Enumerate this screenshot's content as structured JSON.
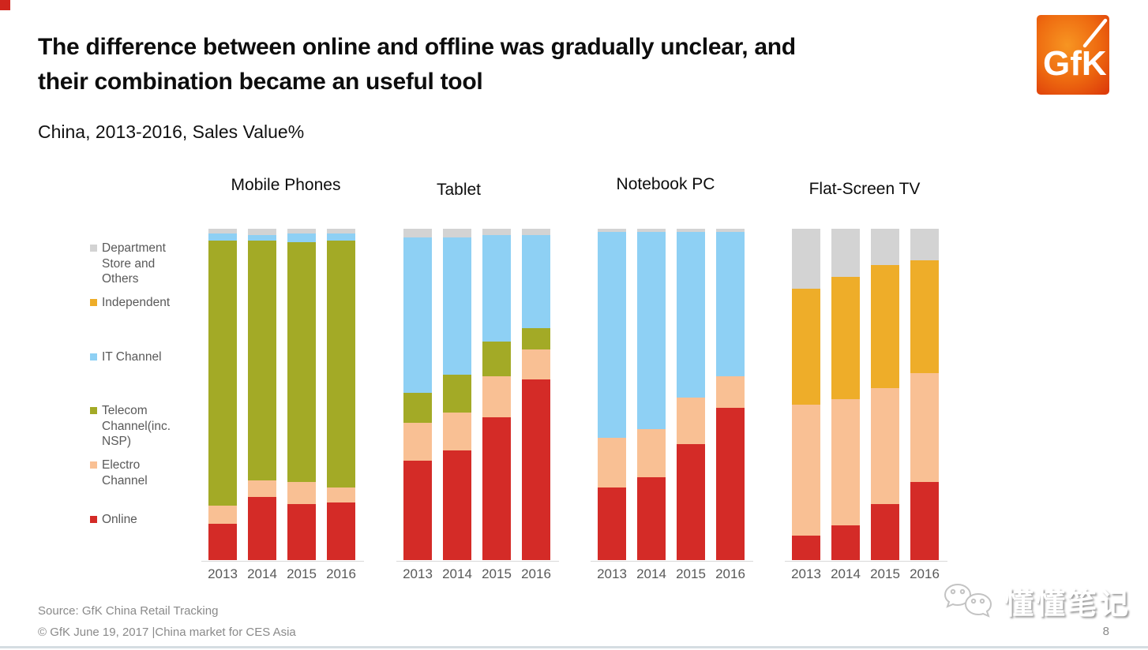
{
  "slide": {
    "title_line1": "The difference between online and offline was gradually unclear, and",
    "title_line2": "their combination became an useful tool",
    "subtitle": "China, 2013-2016, Sales Value%",
    "logo_text": "GfK",
    "footer_source": "Source: GfK China Retail Tracking",
    "footer_copyright": "© GfK June 19, 2017 |China market for CES Asia",
    "page_number": "8",
    "watermark_text": "懂懂笔记"
  },
  "colors": {
    "online": "#d42b27",
    "electro_channel": "#f9c094",
    "telecom_channel": "#a3aa26",
    "it_channel": "#8ed0f4",
    "independent": "#eead29",
    "department_store": "#d3d3d3",
    "logo_orange": "#ec5c0f",
    "axis_gray": "#d9d9d9",
    "text_gray": "#595959"
  },
  "legend": {
    "items": [
      {
        "id": "department-store",
        "label": "Department Store and Others",
        "color": "#d3d3d3"
      },
      {
        "id": "independent",
        "label": "Independent",
        "color": "#eead29"
      },
      {
        "id": "it-channel",
        "label": "IT Channel",
        "color": "#8ed0f4"
      },
      {
        "id": "telecom-channel",
        "label": "Telecom Channel(inc. NSP)",
        "color": "#a3aa26"
      },
      {
        "id": "electro-channel",
        "label": "Electro Channel",
        "color": "#f9c094"
      },
      {
        "id": "online",
        "label": "Online",
        "color": "#d42b27"
      }
    ]
  },
  "chart_data": [
    {
      "type": "bar",
      "stacked": true,
      "title": "Mobile Phones",
      "categories": [
        "2013",
        "2014",
        "2015",
        "2016"
      ],
      "ylabel": "Sales Value %",
      "ylim": [
        0,
        100
      ],
      "series": [
        {
          "name": "Online",
          "color": "#d42b27",
          "values": [
            11,
            19,
            17,
            17.5
          ]
        },
        {
          "name": "Electro Channel",
          "color": "#f9c094",
          "values": [
            5.5,
            5,
            6.5,
            4.5
          ]
        },
        {
          "name": "Telecom Channel(inc. NSP)",
          "color": "#a3aa26",
          "values": [
            80,
            72.5,
            72.5,
            74.5
          ]
        },
        {
          "name": "IT Channel",
          "color": "#8ed0f4",
          "values": [
            2,
            1.5,
            2.5,
            2
          ]
        },
        {
          "name": "Independent",
          "color": "#eead29",
          "values": [
            0,
            0,
            0,
            0
          ]
        },
        {
          "name": "Department Store and Others",
          "color": "#d3d3d3",
          "values": [
            1.5,
            2,
            1.5,
            1.5
          ]
        }
      ]
    },
    {
      "type": "bar",
      "stacked": true,
      "title": "Tablet",
      "categories": [
        "2013",
        "2014",
        "2015",
        "2016"
      ],
      "ylabel": "Sales Value %",
      "ylim": [
        0,
        100
      ],
      "series": [
        {
          "name": "Online",
          "color": "#d42b27",
          "values": [
            30,
            33,
            43,
            54.5
          ]
        },
        {
          "name": "Electro Channel",
          "color": "#f9c094",
          "values": [
            11.5,
            11.5,
            12.5,
            9
          ]
        },
        {
          "name": "Telecom Channel(inc. NSP)",
          "color": "#a3aa26",
          "values": [
            9,
            11.5,
            10.5,
            6.5
          ]
        },
        {
          "name": "IT Channel",
          "color": "#8ed0f4",
          "values": [
            47,
            41.5,
            32,
            28
          ]
        },
        {
          "name": "Independent",
          "color": "#eead29",
          "values": [
            0,
            0,
            0,
            0
          ]
        },
        {
          "name": "Department Store and Others",
          "color": "#d3d3d3",
          "values": [
            2.5,
            2.5,
            2,
            2
          ]
        }
      ]
    },
    {
      "type": "bar",
      "stacked": true,
      "title": "Notebook PC",
      "categories": [
        "2013",
        "2014",
        "2015",
        "2016"
      ],
      "ylabel": "Sales Value %",
      "ylim": [
        0,
        100
      ],
      "series": [
        {
          "name": "Online",
          "color": "#d42b27",
          "values": [
            22,
            25,
            35,
            46
          ]
        },
        {
          "name": "Electro Channel",
          "color": "#f9c094",
          "values": [
            15,
            14.5,
            14,
            9.5
          ]
        },
        {
          "name": "Telecom Channel(inc. NSP)",
          "color": "#a3aa26",
          "values": [
            0,
            0,
            0,
            0
          ]
        },
        {
          "name": "IT Channel",
          "color": "#8ed0f4",
          "values": [
            62,
            59.5,
            50,
            43.5
          ]
        },
        {
          "name": "Independent",
          "color": "#eead29",
          "values": [
            0,
            0,
            0,
            0
          ]
        },
        {
          "name": "Department Store and Others",
          "color": "#d3d3d3",
          "values": [
            1,
            1,
            1,
            1
          ]
        }
      ]
    },
    {
      "type": "bar",
      "stacked": true,
      "title": "Flat-Screen TV",
      "categories": [
        "2013",
        "2014",
        "2015",
        "2016"
      ],
      "ylabel": "Sales Value %",
      "ylim": [
        0,
        100
      ],
      "series": [
        {
          "name": "Online",
          "color": "#d42b27",
          "values": [
            7.5,
            10.5,
            17,
            23.5
          ]
        },
        {
          "name": "Electro Channel",
          "color": "#f9c094",
          "values": [
            39.5,
            38,
            35,
            33
          ]
        },
        {
          "name": "Telecom Channel(inc. NSP)",
          "color": "#a3aa26",
          "values": [
            0,
            0,
            0,
            0
          ]
        },
        {
          "name": "IT Channel",
          "color": "#8ed0f4",
          "values": [
            0,
            0,
            0,
            0
          ]
        },
        {
          "name": "Independent",
          "color": "#eead29",
          "values": [
            35,
            37,
            37,
            34
          ]
        },
        {
          "name": "Department Store and Others",
          "color": "#d3d3d3",
          "values": [
            18,
            14.5,
            11,
            9.5
          ]
        }
      ]
    }
  ]
}
